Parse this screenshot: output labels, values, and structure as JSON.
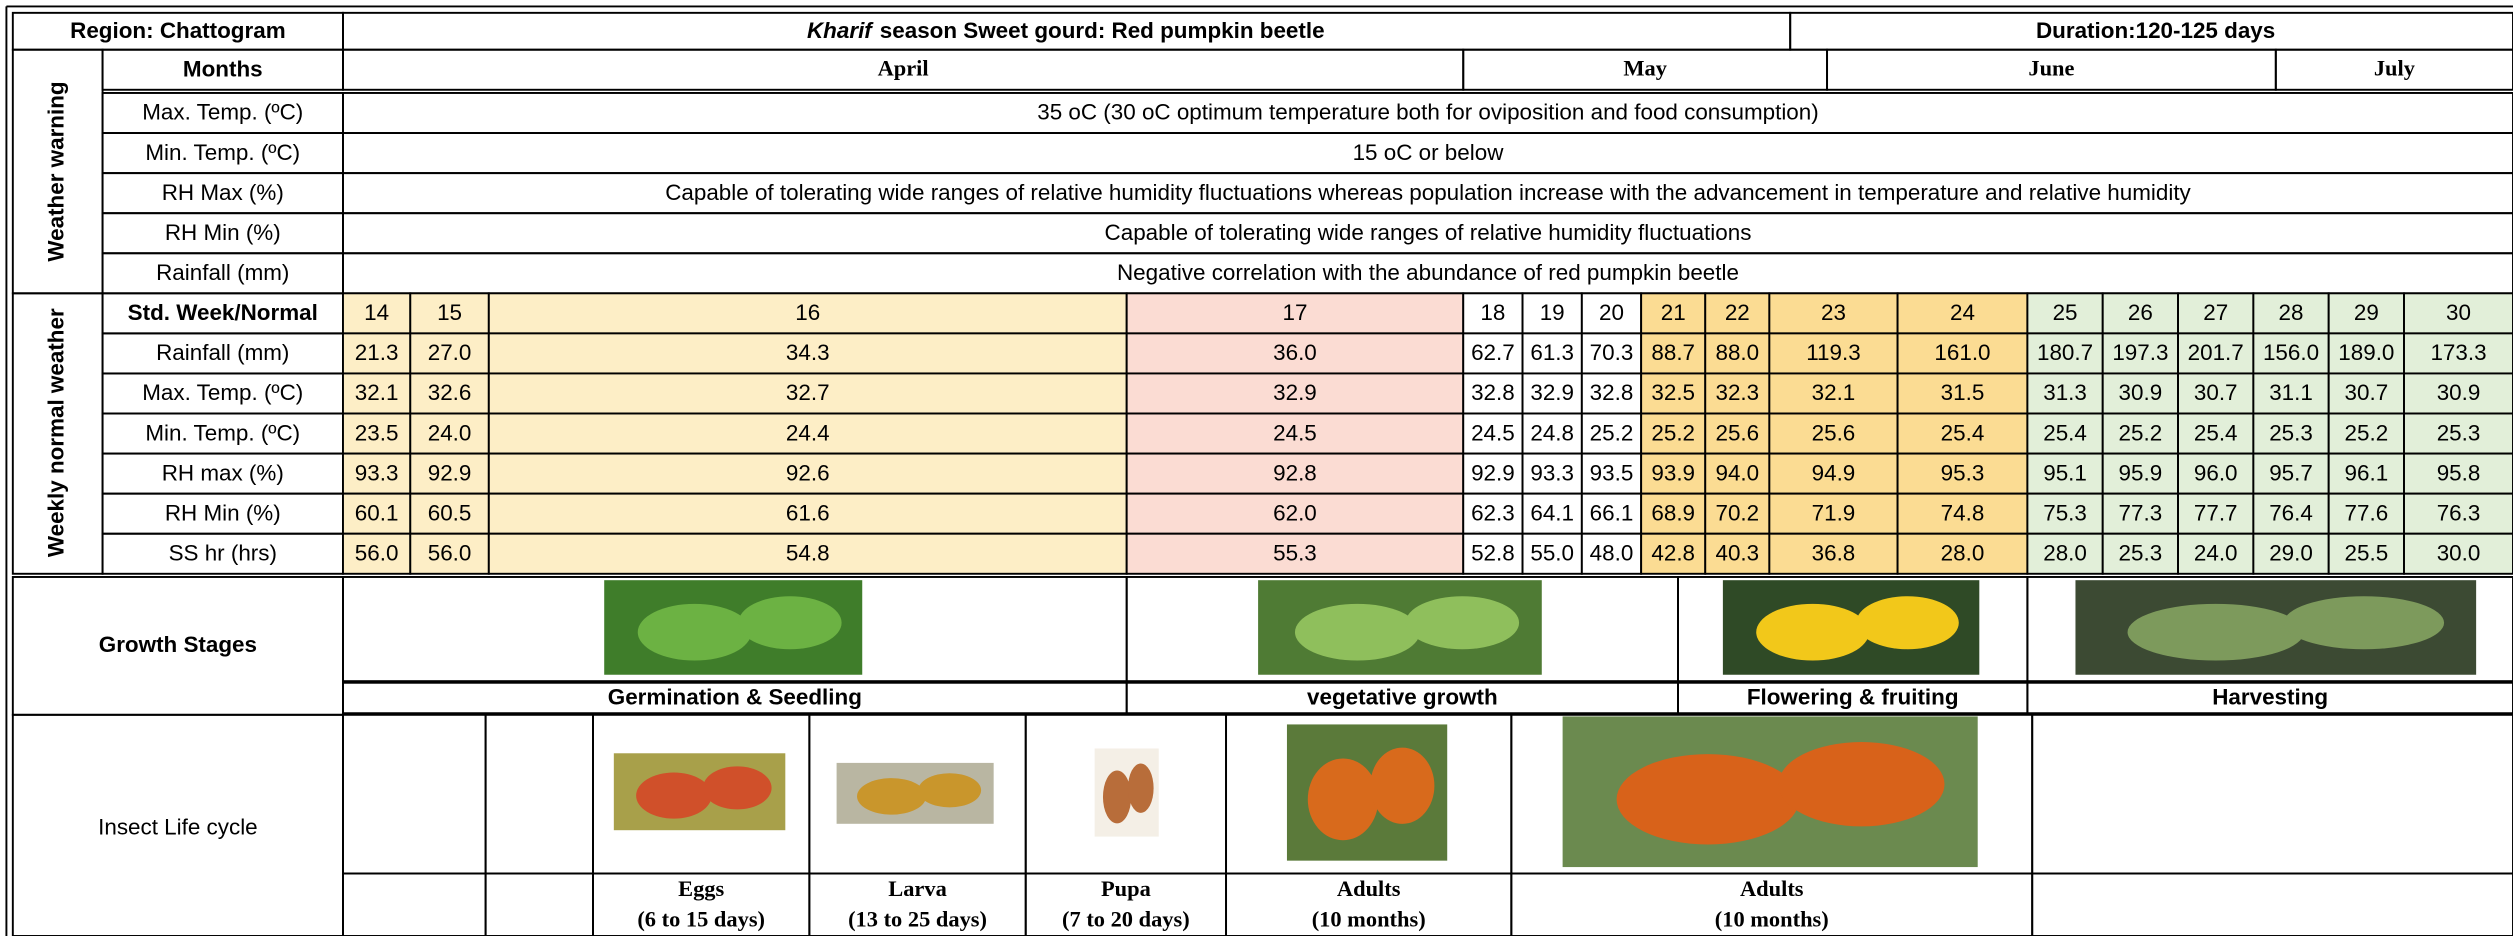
{
  "header": {
    "region": "Region: Chattogram",
    "title_italic": "Kharif",
    "title_rest": "season Sweet gourd: Red pumpkin beetle",
    "duration": "Duration:120-125 days"
  },
  "weather_warning": {
    "label": "Weather warning",
    "months_label": "Months",
    "months": [
      "April",
      "May",
      "June",
      "July"
    ],
    "rows": [
      {
        "label": "Max. Temp. (ºC)",
        "text": "35 oC (30 oC optimum temperature both for oviposition and food consumption)"
      },
      {
        "label": "Min. Temp. (ºC)",
        "text": "15 oC or below"
      },
      {
        "label": "RH Max (%)",
        "text": "Capable of tolerating wide ranges of relative humidity fluctuations whereas population increase with the advancement in temperature and relative humidity"
      },
      {
        "label": "RH Min (%)",
        "text": "Capable of tolerating wide ranges of relative humidity fluctuations"
      },
      {
        "label": "Rainfall (mm)",
        "text": "Negative correlation with the abundance of red pumpkin beetle"
      }
    ]
  },
  "weekly": {
    "label": "Weekly normal weather",
    "header": "Std. Week/Normal",
    "weeks": [
      "14",
      "15",
      "16",
      "17",
      "18",
      "19",
      "20",
      "21",
      "22",
      "23",
      "24",
      "25",
      "26",
      "27",
      "28",
      "29",
      "30"
    ],
    "rows": [
      {
        "label": "Rainfall (mm)",
        "values": [
          "21.3",
          "27.0",
          "34.3",
          "36.0",
          "62.7",
          "61.3",
          "70.3",
          "88.7",
          "88.0",
          "119.3",
          "161.0",
          "180.7",
          "197.3",
          "201.7",
          "156.0",
          "189.0",
          "173.3"
        ]
      },
      {
        "label": "Max. Temp. (ºC)",
        "values": [
          "32.1",
          "32.6",
          "32.7",
          "32.9",
          "32.8",
          "32.9",
          "32.8",
          "32.5",
          "32.3",
          "32.1",
          "31.5",
          "31.3",
          "30.9",
          "30.7",
          "31.1",
          "30.7",
          "30.9"
        ]
      },
      {
        "label": "Min. Temp. (ºC)",
        "values": [
          "23.5",
          "24.0",
          "24.4",
          "24.5",
          "24.5",
          "24.8",
          "25.2",
          "25.2",
          "25.6",
          "25.6",
          "25.4",
          "25.4",
          "25.2",
          "25.4",
          "25.3",
          "25.2",
          "25.3"
        ]
      },
      {
        "label": "RH max (%)",
        "values": [
          "93.3",
          "92.9",
          "92.6",
          "92.8",
          "92.9",
          "93.3",
          "93.5",
          "93.9",
          "94.0",
          "94.9",
          "95.3",
          "95.1",
          "95.9",
          "96.0",
          "95.7",
          "96.1",
          "95.8"
        ]
      },
      {
        "label": "RH Min (%)",
        "values": [
          "60.1",
          "60.5",
          "61.6",
          "62.0",
          "62.3",
          "64.1",
          "66.1",
          "68.9",
          "70.2",
          "71.9",
          "74.8",
          "75.3",
          "77.3",
          "77.7",
          "76.4",
          "77.6",
          "76.3"
        ]
      },
      {
        "label": "SS hr (hrs)",
        "values": [
          "56.0",
          "56.0",
          "54.8",
          "55.3",
          "52.8",
          "55.0",
          "48.0",
          "42.8",
          "40.3",
          "36.8",
          "28.0",
          "28.0",
          "25.3",
          "24.0",
          "29.0",
          "25.5",
          "30.0"
        ]
      }
    ]
  },
  "growth": {
    "label": "Growth Stages",
    "stages": [
      "Germination & Seedling",
      "vegetative growth",
      "Flowering & fruiting",
      "Harvesting"
    ]
  },
  "insect": {
    "label": "Insect Life cycle",
    "stages": [
      {
        "name": "Eggs",
        "duration": "(6 to 15 days)"
      },
      {
        "name": "Larva",
        "duration": "(13 to 25 days)"
      },
      {
        "name": "Pupa",
        "duration": "(7 to 20 days)"
      },
      {
        "name": "Adults",
        "duration": "(10 months)"
      },
      {
        "name": "Adults",
        "duration": "(10 months)"
      }
    ]
  }
}
